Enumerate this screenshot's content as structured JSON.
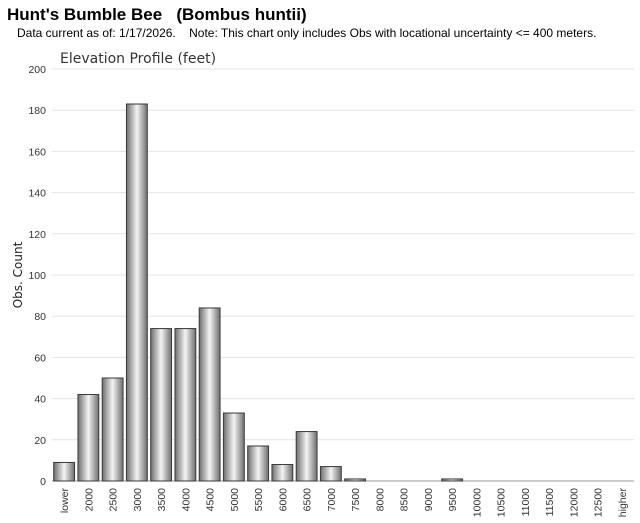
{
  "header": {
    "title": "Hunt's Bumble Bee   (Bombus huntii)",
    "subtitle": "Data current as of: 1/17/2026.    Note: This chart only includes Obs with locational uncertainty <= 400 meters."
  },
  "colors": {
    "bar_fill_dark": "#6e6e6e",
    "bar_fill_light": "#f4f4f4",
    "bar_stroke": "#3a3a3a",
    "grid": "#e3e3e3"
  },
  "chart_data": {
    "type": "bar",
    "title": "Elevation Profile (feet)",
    "xlabel": "",
    "ylabel": "Obs. Count",
    "ylim": [
      0,
      200
    ],
    "yticks": [
      0,
      20,
      40,
      60,
      80,
      100,
      120,
      140,
      160,
      180,
      200
    ],
    "grid": true,
    "categories": [
      "lower",
      "2000",
      "2500",
      "3000",
      "3500",
      "4000",
      "4500",
      "5000",
      "5500",
      "6000",
      "6500",
      "7000",
      "7500",
      "8000",
      "8500",
      "9000",
      "9500",
      "10000",
      "10500",
      "11000",
      "11500",
      "12000",
      "12500",
      "higher"
    ],
    "values": [
      9,
      42,
      50,
      183,
      74,
      74,
      84,
      33,
      17,
      8,
      24,
      7,
      1,
      0,
      0,
      0,
      1,
      0,
      0,
      0,
      0,
      0,
      0,
      0
    ]
  }
}
